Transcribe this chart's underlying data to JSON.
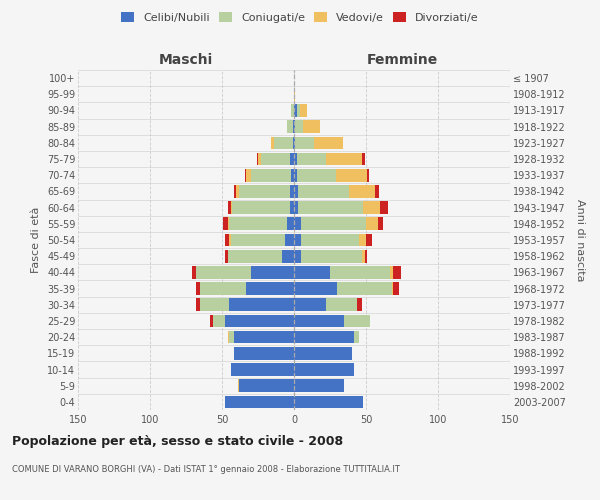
{
  "age_groups": [
    "0-4",
    "5-9",
    "10-14",
    "15-19",
    "20-24",
    "25-29",
    "30-34",
    "35-39",
    "40-44",
    "45-49",
    "50-54",
    "55-59",
    "60-64",
    "65-69",
    "70-74",
    "75-79",
    "80-84",
    "85-89",
    "90-94",
    "95-99",
    "100+"
  ],
  "birth_years": [
    "2003-2007",
    "1998-2002",
    "1993-1997",
    "1988-1992",
    "1983-1987",
    "1978-1982",
    "1973-1977",
    "1968-1972",
    "1963-1967",
    "1958-1962",
    "1953-1957",
    "1948-1952",
    "1943-1947",
    "1938-1942",
    "1933-1937",
    "1928-1932",
    "1923-1927",
    "1918-1922",
    "1913-1917",
    "1908-1912",
    "≤ 1907"
  ],
  "maschi": {
    "celibi": [
      48,
      38,
      44,
      42,
      42,
      48,
      45,
      33,
      30,
      8,
      6,
      5,
      3,
      3,
      2,
      3,
      1,
      1,
      0,
      0,
      0
    ],
    "coniugati": [
      0,
      0,
      0,
      0,
      3,
      8,
      20,
      32,
      38,
      38,
      38,
      40,
      40,
      35,
      28,
      20,
      13,
      4,
      2,
      0,
      0
    ],
    "vedovi": [
      0,
      1,
      0,
      0,
      1,
      0,
      0,
      0,
      0,
      0,
      1,
      1,
      1,
      2,
      3,
      2,
      2,
      0,
      0,
      0,
      0
    ],
    "divorziati": [
      0,
      0,
      0,
      0,
      0,
      2,
      3,
      3,
      3,
      2,
      3,
      3,
      2,
      2,
      1,
      1,
      0,
      0,
      0,
      0,
      0
    ]
  },
  "femmine": {
    "nubili": [
      48,
      35,
      42,
      40,
      42,
      35,
      22,
      30,
      25,
      5,
      5,
      5,
      3,
      3,
      2,
      2,
      1,
      1,
      2,
      0,
      0
    ],
    "coniugate": [
      0,
      0,
      0,
      0,
      3,
      18,
      22,
      38,
      42,
      42,
      40,
      45,
      45,
      35,
      27,
      20,
      13,
      5,
      2,
      0,
      0
    ],
    "vedove": [
      0,
      0,
      0,
      0,
      0,
      0,
      0,
      1,
      2,
      2,
      5,
      8,
      12,
      18,
      22,
      25,
      20,
      12,
      5,
      1,
      0
    ],
    "divorziate": [
      0,
      0,
      0,
      0,
      0,
      0,
      3,
      4,
      5,
      2,
      4,
      4,
      5,
      3,
      1,
      2,
      0,
      0,
      0,
      0,
      0
    ]
  },
  "colors": {
    "celibi_nubili": "#4472c4",
    "coniugati": "#b8cfa0",
    "vedovi": "#f0c060",
    "divorziati": "#cc2222"
  },
  "xlim": 150,
  "title": "Popolazione per età, sesso e stato civile - 2008",
  "subtitle": "COMUNE DI VARANO BORGHI (VA) - Dati ISTAT 1° gennaio 2008 - Elaborazione TUTTITALIA.IT",
  "ylabel_left": "Fasce di età",
  "ylabel_right": "Anni di nascita",
  "xlabel_left": "Maschi",
  "xlabel_right": "Femmine",
  "bg_color": "#f5f5f5",
  "grid_color": "#cccccc"
}
